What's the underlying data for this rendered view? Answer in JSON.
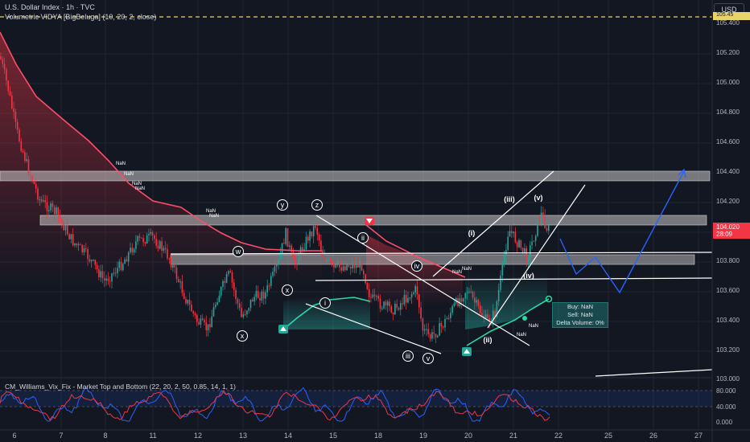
{
  "header": {
    "symbol_line": "U.S. Dollar Index · 1h · TVC",
    "indicator_line": "Volumetric VIDYA [BigBeluga] (10, 20, 2, close)"
  },
  "currency_button": "USD",
  "price_axis": [
    "105.400",
    "105.200",
    "105.000",
    "104.800",
    "104.600",
    "104.400",
    "104.200",
    "104.000",
    "103.800",
    "103.600",
    "103.400",
    "103.200",
    "103.000"
  ],
  "top_tag": "105.45",
  "last_price": {
    "value": "104.020",
    "countdown": "28:09"
  },
  "time_axis": [
    "6",
    "7",
    "8",
    "11",
    "12",
    "13",
    "14",
    "15",
    "18",
    "19",
    "20",
    "21",
    "22",
    "25",
    "26",
    "27"
  ],
  "wave_labels": [
    {
      "text": "y"
    },
    {
      "text": "z"
    },
    {
      "text": "w"
    },
    {
      "text": "x"
    },
    {
      "text": "x"
    },
    {
      "text": "ii"
    },
    {
      "text": "i"
    },
    {
      "text": "iv"
    },
    {
      "text": "iii"
    },
    {
      "text": "v"
    },
    {
      "text": "(i)"
    },
    {
      "text": "(ii)"
    },
    {
      "text": "(iii)"
    },
    {
      "text": "(iv)"
    },
    {
      "text": "(v)"
    }
  ],
  "nan_label": "NaN",
  "volume_box": {
    "buy": "Buy: NaN",
    "sell": "Sell: NaN",
    "delta": "Delta Volume: 0%"
  },
  "indicator": {
    "title": "CM_Williams_Vix_Fix - Market Top and Bottom (22, 20, 2, 50, 0.85, 14, 1, 1)",
    "axis": [
      "80.000",
      "40.000",
      "0.000"
    ],
    "values": [
      {
        "text": "80.000"
      },
      {
        "text": "40.000"
      },
      {
        "text": "0.000"
      }
    ]
  },
  "colors": {
    "background": "#131722",
    "bull": "#26a69a",
    "bear": "#f23645",
    "vidya_bear": "#ff4d6a",
    "vidya_bull": "#2bd9a6",
    "projection": "#2962ff",
    "zone": "#c8c8c8"
  }
}
